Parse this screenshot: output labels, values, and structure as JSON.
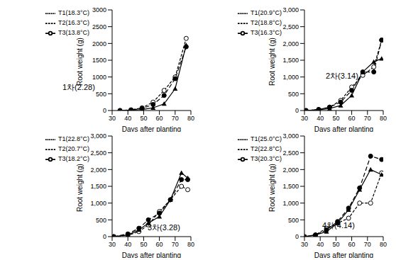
{
  "chart_data": [
    {
      "type": "line",
      "annotation": "1차(2.28)",
      "x_label": "Days after planting",
      "y_label": "Root weight (g)",
      "legend": "upper left",
      "x": [
        35,
        42,
        49,
        56,
        63,
        70,
        77
      ],
      "xlim": [
        30,
        80
      ],
      "xticks": [
        30,
        40,
        50,
        60,
        70,
        80
      ],
      "ylim": [
        0,
        3000
      ],
      "yticks": [
        0,
        500,
        1000,
        1500,
        2000,
        2500,
        3000
      ],
      "series": [
        {
          "name": "T1(18.3°C)",
          "color": "#000000",
          "marker": "circle_open",
          "line_style": "dashed",
          "values": [
            0,
            20,
            80,
            250,
            600,
            1000,
            2150
          ]
        },
        {
          "name": "T2(16.3°C)",
          "color": "#000000",
          "marker": "circle",
          "line_style": "dashed",
          "values": [
            0,
            15,
            60,
            180,
            450,
            950,
            1900
          ]
        },
        {
          "name": "T3(13.8°C)",
          "color": "#000000",
          "marker": "triangle",
          "line_style": "solid",
          "values": [
            0,
            5,
            30,
            80,
            200,
            650,
            1950
          ]
        }
      ]
    },
    {
      "type": "line",
      "annotation": "2차(3.14)",
      "x_label": "Days after planting",
      "y_label": "Root weight (g)",
      "legend": "upper left",
      "x": [
        31,
        39,
        46,
        53,
        60,
        67,
        74,
        79
      ],
      "xlim": [
        30,
        80
      ],
      "xticks": [
        30,
        40,
        50,
        60,
        70,
        80
      ],
      "ylim": [
        0,
        3000
      ],
      "yticks": [
        0,
        500,
        {
          "value": 1000,
          "label": "1,000"
        },
        {
          "value": 1500,
          "label": "1,500"
        },
        {
          "value": 2000,
          "label": "2,000"
        },
        {
          "value": 2500,
          "label": "2,500"
        },
        {
          "value": 3000,
          "label": "3,000"
        }
      ],
      "series": [
        {
          "name": "T1(20.9°C)",
          "color": "#000000",
          "marker": "circle_open",
          "line_style": "dashed",
          "values": [
            0,
            30,
            100,
            300,
            700,
            1050,
            1300,
            2100
          ]
        },
        {
          "name": "T2(18.8°C)",
          "color": "#000000",
          "marker": "circle",
          "line_style": "dashed",
          "values": [
            0,
            30,
            100,
            250,
            600,
            1150,
            1150,
            2100
          ]
        },
        {
          "name": "T3(16.3°C)",
          "color": "#000000",
          "marker": "triangle",
          "line_style": "solid",
          "values": [
            0,
            20,
            60,
            150,
            450,
            1150,
            1450,
            1550
          ]
        }
      ]
    },
    {
      "type": "line",
      "annotation": "3차(3.28)",
      "x_label": "Days after planting",
      "y_label": "Root weight (g)",
      "legend": "upper left",
      "x": [
        31,
        40,
        47,
        53,
        60,
        67,
        74,
        78
      ],
      "xlim": [
        30,
        80
      ],
      "xticks": [
        30,
        40,
        50,
        60,
        70,
        80
      ],
      "ylim": [
        0,
        3000
      ],
      "yticks": [
        0,
        500,
        {
          "value": 1000,
          "label": "1,000"
        },
        {
          "value": 1500,
          "label": "1,500"
        },
        {
          "value": 2000,
          "label": "2,000"
        },
        {
          "value": 2500,
          "label": "2,500"
        },
        {
          "value": 3000,
          "label": "3,000"
        }
      ],
      "series": [
        {
          "name": "T1(22.8°C)",
          "color": "#000000",
          "marker": "circle_open",
          "line_style": "dashed",
          "values": [
            0,
            40,
            150,
            350,
            750,
            1100,
            1500,
            1400
          ]
        },
        {
          "name": "T2(20.7°C)",
          "color": "#000000",
          "marker": "circle",
          "line_style": "dashed",
          "values": [
            0,
            80,
            250,
            500,
            700,
            1100,
            1700,
            1700
          ]
        },
        {
          "name": "T3(18.2°C)",
          "color": "#000000",
          "marker": "triangle",
          "line_style": "solid",
          "values": [
            0,
            50,
            200,
            400,
            600,
            1100,
            1900,
            1750
          ]
        }
      ]
    },
    {
      "type": "line",
      "annotation": "4차(4.14)",
      "x_label": "Days after planting",
      "y_label": "Root weight (g)",
      "legend": "upper left",
      "x": [
        30,
        37,
        44,
        51,
        58,
        65,
        72,
        79
      ],
      "xlim": [
        30,
        80
      ],
      "xticks": [
        30,
        40,
        50,
        60,
        70,
        80
      ],
      "ylim": [
        0,
        3000
      ],
      "yticks": [
        0,
        500,
        {
          "value": 1000,
          "label": "1,000"
        },
        {
          "value": 1500,
          "label": "1,500"
        },
        {
          "value": 2000,
          "label": "2,000"
        },
        {
          "value": 2500,
          "label": "2,500"
        },
        {
          "value": 3000,
          "label": "3,000"
        }
      ],
      "series": [
        {
          "name": "T1(25.0°C)",
          "color": "#000000",
          "marker": "circle_open",
          "line_style": "dashed",
          "values": [
            0,
            50,
            250,
            400,
            550,
            1000,
            1000,
            1900
          ]
        },
        {
          "name": "T2(22.8°C)",
          "color": "#000000",
          "marker": "circle",
          "line_style": "dashed",
          "values": [
            0,
            50,
            200,
            450,
            850,
            1450,
            2400,
            2300
          ]
        },
        {
          "name": "T3(20.3°C)",
          "color": "#000000",
          "marker": "triangle",
          "line_style": "solid",
          "values": [
            0,
            50,
            150,
            400,
            800,
            1400,
            2000,
            1850
          ]
        }
      ]
    }
  ]
}
